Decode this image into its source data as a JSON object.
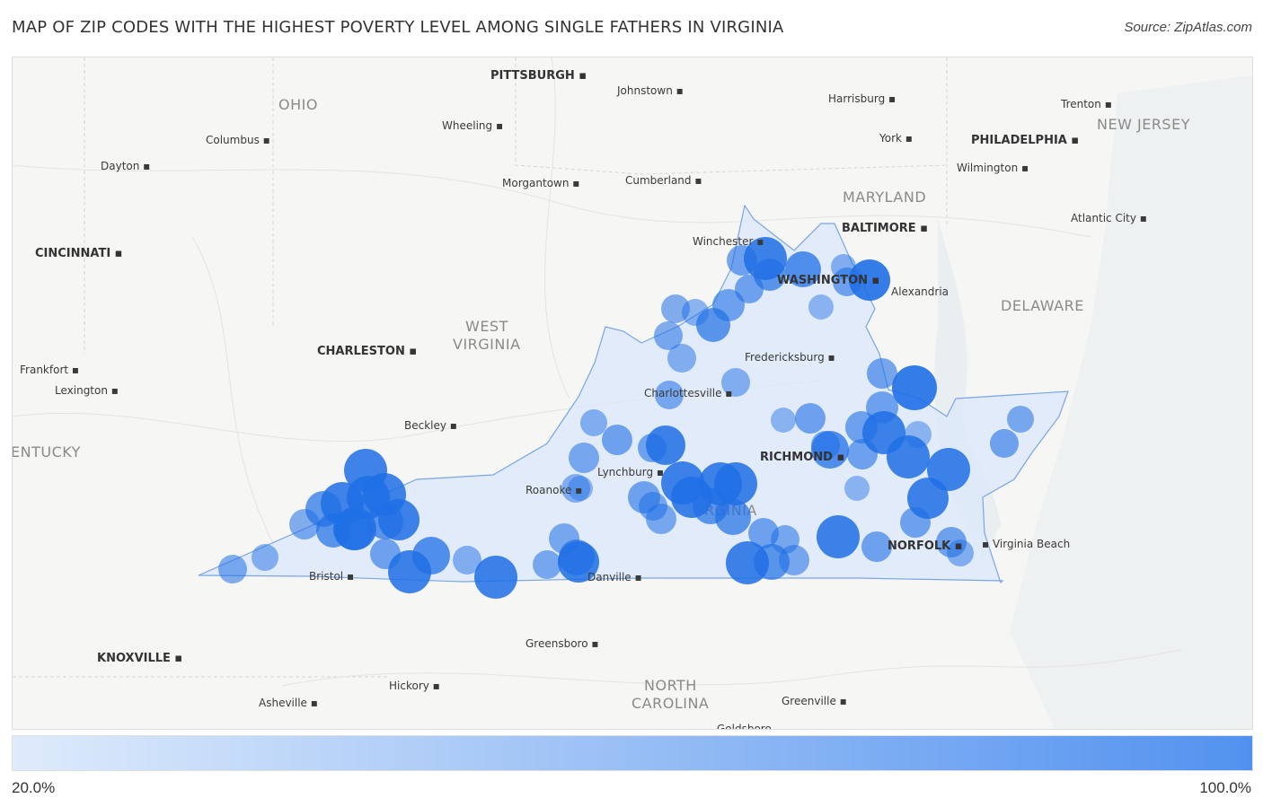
{
  "title": "MAP OF ZIP CODES WITH THE HIGHEST POVERTY LEVEL AMONG SINGLE FATHERS IN VIRGINIA",
  "source": "Source: ZipAtlas.com",
  "legend": {
    "min_label": "20.0%",
    "max_label": "100.0%",
    "color_low": "#deebfb",
    "color_high": "#5292ef"
  },
  "colors": {
    "bubble": "#1f6fe5",
    "state_fill": "#dce8fa",
    "state_stroke": "#7aa5e6"
  },
  "state_labels": [
    "OHIO",
    "WEST",
    "VIRGINIA",
    "MARYLAND",
    "NEW JERSEY",
    "DELAWARE",
    "NORTH",
    "CAROLINA",
    "ENTUCKY",
    "RGINIA"
  ],
  "cities": [
    "PITTSBURGH",
    "Johnstown",
    "Harrisburg",
    "Trenton",
    "Columbus",
    "Wheeling",
    "York",
    "PHILADELPHIA",
    "Dayton",
    "Morgantown",
    "Cumberland",
    "Wilmington",
    "BALTIMORE",
    "Atlantic City",
    "Winchester",
    "CINCINNATI",
    "WASHINGTON",
    "Alexandria",
    "CHARLESTON",
    "Fredericksburg",
    "Frankfort",
    "Lexington",
    "Charlottesville",
    "Beckley",
    "RICHMOND",
    "Lynchburg",
    "Roanoke",
    "Bristol",
    "Danville",
    "NORFOLK",
    "Virginia Beach",
    "Greensboro",
    "KNOXVILLE",
    "Hickory",
    "Asheville",
    "Greenville"
  ]
}
